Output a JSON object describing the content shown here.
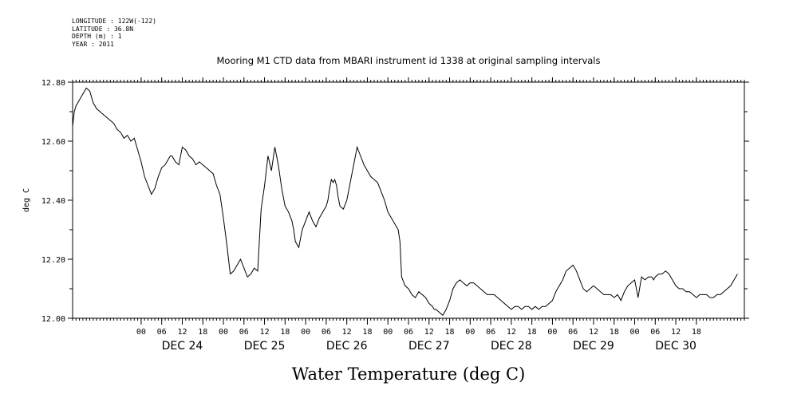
{
  "header": {
    "longitude": "LONGITUDE : 122W(-122)",
    "latitude": "LATITUDE : 36.8N",
    "depth": "DEPTH (m) : 1",
    "year": "YEAR : 2011"
  },
  "chart_data": {
    "type": "line",
    "title": "Mooring M1 CTD data from MBARI instrument id 1338 at original sampling intervals",
    "xlabel": "Water Temperature (deg C)",
    "ylabel": "deg C",
    "ylim": [
      12.0,
      12.8
    ],
    "yticks": [
      "12.00",
      "12.20",
      "12.40",
      "12.60",
      "12.80"
    ],
    "xlim": [
      -20,
      176
    ],
    "hour_ticks": [
      "00",
      "06",
      "12",
      "18",
      "00",
      "06",
      "12",
      "18",
      "00",
      "06",
      "12",
      "18",
      "00",
      "06",
      "12",
      "18",
      "00",
      "06",
      "12",
      "18",
      "00",
      "06",
      "12",
      "18",
      "00",
      "06",
      "12",
      "18"
    ],
    "day_labels": [
      "DEC 24",
      "DEC 25",
      "DEC 26",
      "DEC 27",
      "DEC 28",
      "DEC 29",
      "DEC 30"
    ],
    "x_units": "hours from 2011-12-24 00:00",
    "grid": false,
    "series": [
      {
        "name": "",
        "x": [
          -20,
          -19.5,
          -19,
          -18,
          -17,
          -16,
          -15,
          -14,
          -13,
          -12,
          -11,
          -10,
          -9,
          -8,
          -7,
          -6,
          -5,
          -4,
          -3,
          -2,
          -1,
          0,
          1,
          2,
          3,
          4,
          5,
          6,
          7,
          7.5,
          8,
          8.5,
          9,
          10,
          11,
          12,
          13,
          14,
          15,
          16,
          17,
          18,
          19,
          20,
          21,
          22,
          23,
          24,
          25,
          26,
          27,
          28,
          29,
          30,
          31,
          32,
          33,
          34,
          35,
          36,
          37,
          38,
          39,
          40,
          41,
          42,
          43,
          44,
          44.5,
          45,
          46,
          47,
          48,
          49,
          50,
          51,
          52,
          53,
          54,
          54.5,
          55,
          55.5,
          56,
          56.5,
          57,
          57.5,
          58,
          59,
          60,
          61,
          62,
          63,
          64,
          65,
          66,
          67,
          68,
          69,
          70,
          71,
          72,
          73,
          74,
          75,
          75.5,
          76,
          77,
          78,
          79,
          80,
          81,
          82,
          83,
          84,
          85,
          85.5,
          86,
          87,
          88,
          89,
          90,
          91,
          92,
          93,
          94,
          95,
          96,
          97,
          98,
          99,
          100,
          101,
          102,
          103,
          104,
          105,
          106,
          107,
          108,
          109,
          110,
          111,
          112,
          113,
          114,
          115,
          116,
          117,
          118,
          119,
          120,
          121,
          122,
          123,
          124,
          125,
          126,
          127,
          128,
          129,
          130,
          131,
          132,
          133,
          134,
          135,
          136,
          137,
          138,
          139,
          140,
          141,
          142,
          143,
          144,
          145,
          146,
          147,
          148,
          149,
          149.5,
          150,
          151,
          152,
          153,
          154,
          155,
          156,
          157,
          158,
          159,
          160,
          161,
          162,
          163,
          164,
          165,
          166,
          167,
          168,
          169,
          170,
          171,
          172,
          173,
          174
        ],
        "y": [
          12.65,
          12.7,
          12.72,
          12.74,
          12.76,
          12.78,
          12.77,
          12.73,
          12.71,
          12.7,
          12.69,
          12.68,
          12.67,
          12.66,
          12.64,
          12.63,
          12.61,
          12.62,
          12.6,
          12.61,
          12.57,
          12.53,
          12.48,
          12.45,
          12.42,
          12.44,
          12.48,
          12.51,
          12.52,
          12.53,
          12.54,
          12.55,
          12.55,
          12.53,
          12.52,
          12.58,
          12.57,
          12.55,
          12.54,
          12.52,
          12.53,
          12.52,
          12.51,
          12.5,
          12.49,
          12.45,
          12.42,
          12.34,
          12.25,
          12.15,
          12.16,
          12.18,
          12.2,
          12.17,
          12.14,
          12.15,
          12.17,
          12.16,
          12.37,
          12.45,
          12.55,
          12.5,
          12.58,
          12.52,
          12.44,
          12.38,
          12.36,
          12.33,
          12.3,
          12.26,
          12.24,
          12.3,
          12.33,
          12.36,
          12.33,
          12.31,
          12.34,
          12.36,
          12.38,
          12.4,
          12.44,
          12.47,
          12.46,
          12.47,
          12.45,
          12.41,
          12.38,
          12.37,
          12.4,
          12.46,
          12.52,
          12.58,
          12.55,
          12.52,
          12.5,
          12.48,
          12.47,
          12.46,
          12.43,
          12.4,
          12.36,
          12.34,
          12.32,
          12.3,
          12.26,
          12.14,
          12.11,
          12.1,
          12.08,
          12.07,
          12.09,
          12.08,
          12.07,
          12.05,
          12.04,
          12.03,
          12.03,
          12.02,
          12.01,
          12.03,
          12.06,
          12.1,
          12.12,
          12.13,
          12.12,
          12.11,
          12.12,
          12.12,
          12.11,
          12.1,
          12.09,
          12.08,
          12.08,
          12.08,
          12.07,
          12.06,
          12.05,
          12.04,
          12.03,
          12.04,
          12.04,
          12.03,
          12.04,
          12.04,
          12.03,
          12.04,
          12.03,
          12.04,
          12.04,
          12.05,
          12.06,
          12.09,
          12.11,
          12.13,
          12.16,
          12.17,
          12.18,
          12.16,
          12.13,
          12.1,
          12.09,
          12.1,
          12.11,
          12.1,
          12.09,
          12.08,
          12.08,
          12.08,
          12.07,
          12.08,
          12.06,
          12.09,
          12.11,
          12.12,
          12.13,
          12.07,
          12.14,
          12.13,
          12.14,
          12.14,
          12.13,
          12.14,
          12.15,
          12.15,
          12.16,
          12.15,
          12.13,
          12.11,
          12.1,
          12.1,
          12.09,
          12.09,
          12.08,
          12.07,
          12.08,
          12.08,
          12.08,
          12.07,
          12.07,
          12.08,
          12.08,
          12.09,
          12.1,
          12.11,
          12.13,
          12.15
        ]
      }
    ]
  }
}
